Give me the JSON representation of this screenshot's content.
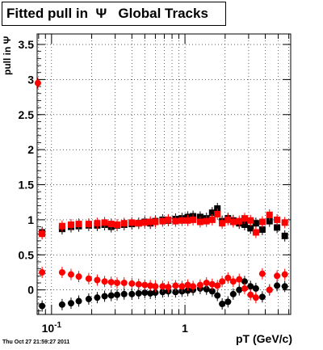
{
  "chart_data": {
    "type": "scatter",
    "title": "Fitted pull in  Ψ   Global Tracks",
    "xlabel": "pT (GeV/c)",
    "ylabel": "pull in Ψ",
    "x_scale": "log",
    "xlim": [
      0.078,
      6.2
    ],
    "ylim": [
      -0.35,
      3.65
    ],
    "grid": true,
    "yticks": [
      0,
      0.5,
      1,
      1.5,
      2,
      2.5,
      3,
      3.5
    ],
    "ytick_labels": [
      "0",
      "0.5",
      "1",
      "1.5",
      "2",
      "2.5",
      "3",
      "3.5"
    ],
    "xtick_major": [
      0.1,
      1
    ],
    "xtick_labels": [
      "10^-1",
      "1"
    ],
    "series": [
      {
        "color": "#000000",
        "marker": "square",
        "x": [
          0.085,
          0.12,
          0.14,
          0.16,
          0.19,
          0.22,
          0.25,
          0.28,
          0.31,
          0.35,
          0.4,
          0.45,
          0.5,
          0.55,
          0.6,
          0.68,
          0.75,
          0.85,
          0.95,
          1.05,
          1.15,
          1.3,
          1.45,
          1.6,
          1.75,
          1.9,
          2.1,
          2.3,
          2.55,
          2.8,
          3.1,
          3.4,
          3.8,
          4.3,
          4.9,
          5.6
        ],
        "values": [
          0.82,
          0.87,
          0.9,
          0.91,
          0.92,
          0.92,
          0.93,
          0.9,
          0.92,
          0.93,
          0.94,
          0.95,
          0.97,
          0.95,
          0.98,
          1.0,
          0.99,
          1.01,
          1.02,
          1.04,
          1.05,
          1.04,
          1.02,
          1.1,
          1.16,
          0.98,
          1.02,
          0.99,
          0.95,
          0.93,
          0.88,
          0.95,
          0.86,
          0.98,
          0.89,
          0.77
        ]
      },
      {
        "color": "#ff0000",
        "marker": "square",
        "x": [
          0.085,
          0.12,
          0.14,
          0.16,
          0.19,
          0.22,
          0.25,
          0.28,
          0.31,
          0.35,
          0.4,
          0.45,
          0.5,
          0.55,
          0.6,
          0.68,
          0.75,
          0.85,
          0.95,
          1.05,
          1.15,
          1.3,
          1.45,
          1.6,
          1.75,
          1.9,
          2.1,
          2.3,
          2.55,
          2.8,
          3.1,
          3.4,
          3.8,
          4.3,
          4.9,
          5.6
        ],
        "values": [
          0.8,
          0.91,
          0.93,
          0.94,
          0.94,
          0.95,
          0.96,
          0.94,
          0.93,
          0.95,
          0.96,
          0.95,
          0.96,
          0.97,
          0.97,
          0.98,
          1.0,
          0.98,
          0.99,
          0.99,
          1.0,
          0.97,
          0.98,
          1.0,
          1.08,
          0.95,
          1.0,
          0.97,
          0.98,
          1.02,
          0.99,
          0.82,
          0.97,
          1.07,
          1.0,
          0.96
        ]
      },
      {
        "color": "#000000",
        "marker": "circle",
        "x": [
          0.085,
          0.12,
          0.14,
          0.16,
          0.19,
          0.22,
          0.25,
          0.28,
          0.31,
          0.35,
          0.4,
          0.45,
          0.5,
          0.55,
          0.6,
          0.68,
          0.75,
          0.85,
          0.95,
          1.05,
          1.15,
          1.3,
          1.45,
          1.6,
          1.75,
          1.9,
          2.1,
          2.3,
          2.55,
          2.8,
          3.1,
          3.4,
          3.8,
          4.3,
          4.9,
          5.6
        ],
        "values": [
          -0.23,
          -0.21,
          -0.19,
          -0.16,
          -0.13,
          -0.11,
          -0.09,
          -0.08,
          -0.07,
          -0.06,
          -0.06,
          -0.05,
          -0.04,
          -0.05,
          -0.04,
          -0.03,
          -0.02,
          -0.03,
          -0.02,
          -0.01,
          0.0,
          0.02,
          0.01,
          -0.02,
          -0.08,
          -0.2,
          -0.17,
          -0.06,
          0.0,
          0.12,
          0.05,
          0.02,
          -0.1,
          0.0,
          0.06,
          0.05
        ]
      },
      {
        "color": "#ff0000",
        "marker": "circle",
        "x": [
          0.079,
          0.085,
          0.12,
          0.14,
          0.16,
          0.19,
          0.22,
          0.25,
          0.28,
          0.31,
          0.35,
          0.4,
          0.45,
          0.5,
          0.55,
          0.6,
          0.68,
          0.75,
          0.85,
          0.95,
          1.05,
          1.15,
          1.3,
          1.45,
          1.6,
          1.75,
          1.9,
          2.1,
          2.3,
          2.55,
          2.8,
          3.1,
          3.4,
          3.8,
          4.3,
          4.9,
          5.6
        ],
        "values": [
          2.95,
          0.25,
          0.25,
          0.22,
          0.19,
          0.16,
          0.14,
          0.12,
          0.11,
          0.1,
          0.1,
          0.09,
          0.08,
          0.07,
          0.06,
          0.05,
          0.05,
          0.04,
          0.06,
          0.05,
          0.07,
          0.05,
          0.07,
          0.1,
          0.08,
          0.06,
          0.12,
          0.17,
          0.12,
          0.15,
          0.02,
          -0.07,
          -0.11,
          0.23,
          0.0,
          0.2,
          0.22
        ]
      }
    ]
  },
  "timestamp": "Thu Oct 27 21:59:27 2011"
}
